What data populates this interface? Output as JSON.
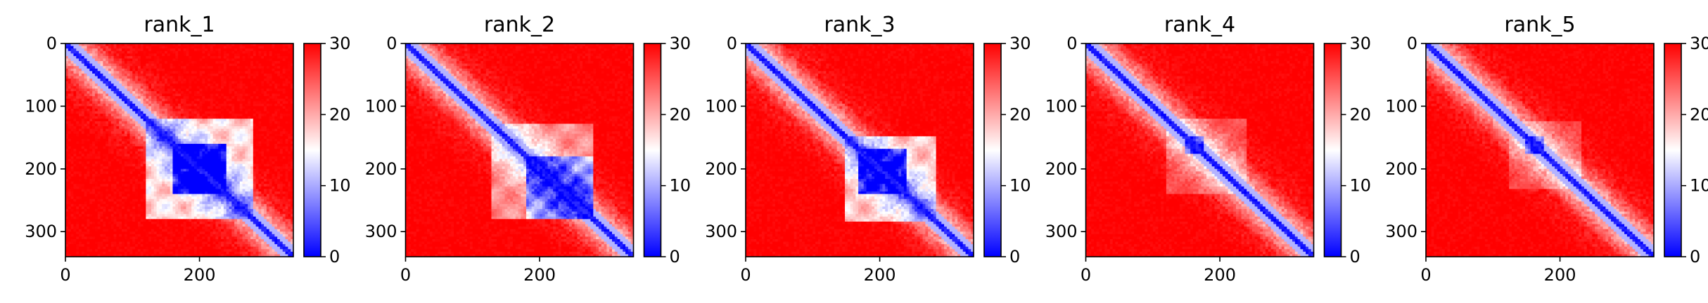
{
  "chart_data": [
    {
      "type": "heatmap",
      "title": "rank_1",
      "xlabel": "",
      "ylabel": "",
      "x_ticks": [
        "0",
        "200"
      ],
      "y_ticks": [
        "0",
        "100",
        "200",
        "300"
      ],
      "matrix_size": 340,
      "colorbar": {
        "range": [
          0,
          30
        ],
        "ticks": [
          "0",
          "10",
          "20",
          "30"
        ],
        "colormap": "bwr"
      },
      "features": {
        "diagonal_band": "strong blue",
        "blue_block": {
          "start": 120,
          "end": 280,
          "intensity": 0.55
        },
        "secondary_blue_block": {
          "start": 160,
          "end": 240,
          "intensity": 0.6
        }
      }
    },
    {
      "type": "heatmap",
      "title": "rank_2",
      "xlabel": "",
      "ylabel": "",
      "x_ticks": [
        "0",
        "200"
      ],
      "y_ticks": [
        "0",
        "100",
        "200",
        "300"
      ],
      "matrix_size": 340,
      "colorbar": {
        "range": [
          0,
          30
        ],
        "ticks": [
          "0",
          "10",
          "20",
          "30"
        ],
        "colormap": "bwr"
      },
      "features": {
        "diagonal_band": "strong blue",
        "blue_block": {
          "start": 130,
          "end": 280,
          "intensity": 0.35
        },
        "secondary_blue_block": {
          "start": 180,
          "end": 280,
          "intensity": 0.5
        }
      }
    },
    {
      "type": "heatmap",
      "title": "rank_3",
      "xlabel": "",
      "ylabel": "",
      "x_ticks": [
        "0",
        "200"
      ],
      "y_ticks": [
        "0",
        "100",
        "200",
        "300"
      ],
      "matrix_size": 340,
      "colorbar": {
        "range": [
          0,
          30
        ],
        "ticks": [
          "0",
          "10",
          "20",
          "30"
        ],
        "colormap": "bwr"
      },
      "features": {
        "diagonal_band": "strong blue",
        "blue_block": {
          "start": 150,
          "end": 285,
          "intensity": 0.5
        },
        "secondary_blue_block": {
          "start": 170,
          "end": 240,
          "intensity": 0.55
        }
      }
    },
    {
      "type": "heatmap",
      "title": "rank_4",
      "xlabel": "",
      "ylabel": "",
      "x_ticks": [
        "0",
        "200"
      ],
      "y_ticks": [
        "0",
        "100",
        "200",
        "300"
      ],
      "matrix_size": 340,
      "colorbar": {
        "range": [
          0,
          30
        ],
        "ticks": [
          "0",
          "10",
          "20",
          "30"
        ],
        "colormap": "bwr"
      },
      "features": {
        "diagonal_band": "strong blue",
        "blue_block": {
          "start": 120,
          "end": 240,
          "intensity": 0.18
        },
        "secondary_blue_block": {
          "start": 150,
          "end": 175,
          "intensity": 0.6
        }
      }
    },
    {
      "type": "heatmap",
      "title": "rank_5",
      "xlabel": "",
      "ylabel": "",
      "x_ticks": [
        "0",
        "200"
      ],
      "y_ticks": [
        "0",
        "100",
        "200",
        "300"
      ],
      "matrix_size": 340,
      "colorbar": {
        "range": [
          0,
          30
        ],
        "ticks": [
          "0",
          "10",
          "20",
          "30"
        ],
        "colormap": "bwr"
      },
      "features": {
        "diagonal_band": "strong blue",
        "blue_block": {
          "start": 125,
          "end": 230,
          "intensity": 0.16
        },
        "secondary_blue_block": {
          "start": 150,
          "end": 175,
          "intensity": 0.55
        }
      }
    }
  ]
}
